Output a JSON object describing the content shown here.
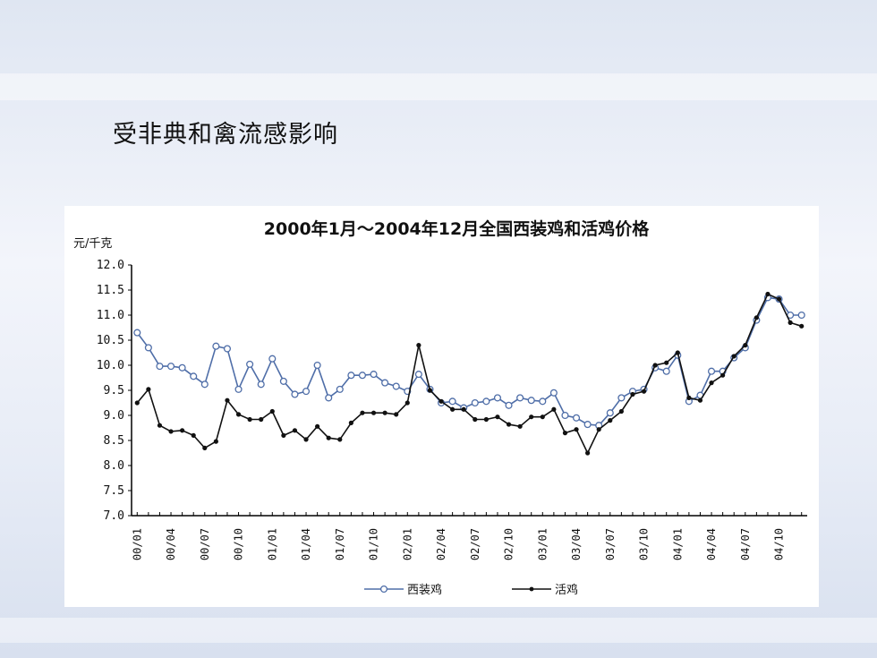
{
  "slide": {
    "title": "受非典和禽流感影响"
  },
  "colors": {
    "western_chicken": "#4f6ea8",
    "live_chicken": "#111111",
    "axis": "#000000"
  },
  "chart_data": {
    "type": "line",
    "title": "2000年1月～2004年12月全国西装鸡和活鸡价格",
    "ylabel": "元/千克",
    "xlabel": "",
    "ylim": [
      7.0,
      12.0
    ],
    "yticks": [
      "12.0",
      "11.5",
      "11.0",
      "10.5",
      "10.0",
      "9.5",
      "9.0",
      "8.5",
      "8.0",
      "7.5",
      "7.0"
    ],
    "ytick_values": [
      12.0,
      11.5,
      11.0,
      10.5,
      10.0,
      9.5,
      9.0,
      8.5,
      8.0,
      7.5,
      7.0
    ],
    "xticks": [
      "00/01",
      "00/04",
      "00/07",
      "00/10",
      "01/01",
      "01/04",
      "01/07",
      "01/10",
      "02/01",
      "02/04",
      "02/07",
      "02/10",
      "03/01",
      "03/04",
      "03/07",
      "03/10",
      "04/01",
      "04/04",
      "04/07",
      "04/10"
    ],
    "xtick_index": [
      0,
      3,
      6,
      9,
      12,
      15,
      18,
      21,
      24,
      27,
      30,
      33,
      36,
      39,
      42,
      45,
      48,
      51,
      54,
      57
    ],
    "num_points": 60,
    "legend_position": "bottom",
    "series": [
      {
        "name": "西装鸡",
        "marker": "open-circle",
        "values": [
          10.65,
          10.35,
          9.98,
          9.98,
          9.95,
          9.78,
          9.62,
          10.38,
          10.33,
          9.52,
          10.02,
          9.62,
          10.13,
          9.68,
          9.42,
          9.48,
          10.0,
          9.35,
          9.52,
          9.8,
          9.8,
          9.82,
          9.65,
          9.58,
          9.48,
          9.82,
          9.52,
          9.25,
          9.28,
          9.15,
          9.25,
          9.28,
          9.35,
          9.2,
          9.35,
          9.3,
          9.28,
          9.45,
          9.0,
          8.95,
          8.82,
          8.8,
          9.05,
          9.35,
          9.48,
          9.52,
          9.95,
          9.88,
          10.2,
          9.28,
          9.4,
          9.88,
          9.88,
          10.15,
          10.35,
          10.9,
          11.35,
          11.32,
          11.0,
          11.0
        ]
      },
      {
        "name": "活鸡",
        "marker": "filled-dot",
        "values": [
          9.25,
          9.52,
          8.8,
          8.68,
          8.7,
          8.6,
          8.35,
          8.48,
          9.3,
          9.02,
          8.92,
          8.92,
          9.08,
          8.6,
          8.7,
          8.52,
          8.78,
          8.55,
          8.52,
          8.85,
          9.05,
          9.05,
          9.05,
          9.02,
          9.25,
          10.4,
          9.5,
          9.28,
          9.12,
          9.12,
          8.92,
          8.92,
          8.97,
          8.82,
          8.78,
          8.97,
          8.97,
          9.12,
          8.65,
          8.72,
          8.25,
          8.72,
          8.9,
          9.08,
          9.42,
          9.48,
          10.0,
          10.05,
          10.25,
          9.35,
          9.3,
          9.65,
          9.8,
          10.18,
          10.4,
          10.95,
          11.42,
          11.32,
          10.85,
          10.78
        ]
      }
    ]
  }
}
